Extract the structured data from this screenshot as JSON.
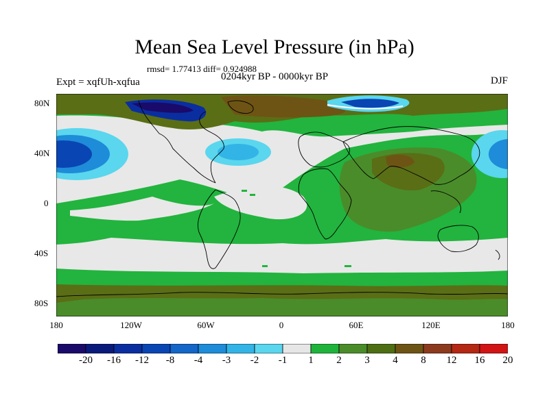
{
  "title": "Mean Sea Level Pressure (in hPa)",
  "stats": "rmsd= 1.77413  diff= 0.924988",
  "experiment": "Expt = xqfUh-xqfua",
  "period": "0204kyr BP - 0000kyr BP",
  "season": "DJF",
  "lat_labels": [
    "80N",
    "40N",
    "0",
    "40S",
    "80S"
  ],
  "lon_labels": [
    "180",
    "120W",
    "60W",
    "0",
    "60E",
    "120E",
    "180"
  ],
  "colorbar": {
    "labels": [
      "-20",
      "-16",
      "-12",
      "-8",
      "-4",
      "-3",
      "-2",
      "-1",
      "1",
      "2",
      "3",
      "4",
      "8",
      "12",
      "16",
      "20"
    ],
    "colors": [
      "#1a0a6a",
      "#0a1a7a",
      "#0a2ea0",
      "#0a45b4",
      "#1466c8",
      "#1e8cd8",
      "#32b4e6",
      "#5ad6ee",
      "#e6e6e6",
      "#1eb43c",
      "#4a8c2a",
      "#4e6e14",
      "#6e5414",
      "#8c3a1e",
      "#b42814",
      "#d21414"
    ]
  },
  "palette": {
    "ocean_neutral": "#e8e8e8",
    "green_2": "#22b43e",
    "green_3": "#4a8c2a",
    "olive_4": "#5a6e16",
    "brown_8": "#6e5414",
    "blue_neg": "#0a45b4",
    "cyan_neg": "#5ad6ee"
  }
}
